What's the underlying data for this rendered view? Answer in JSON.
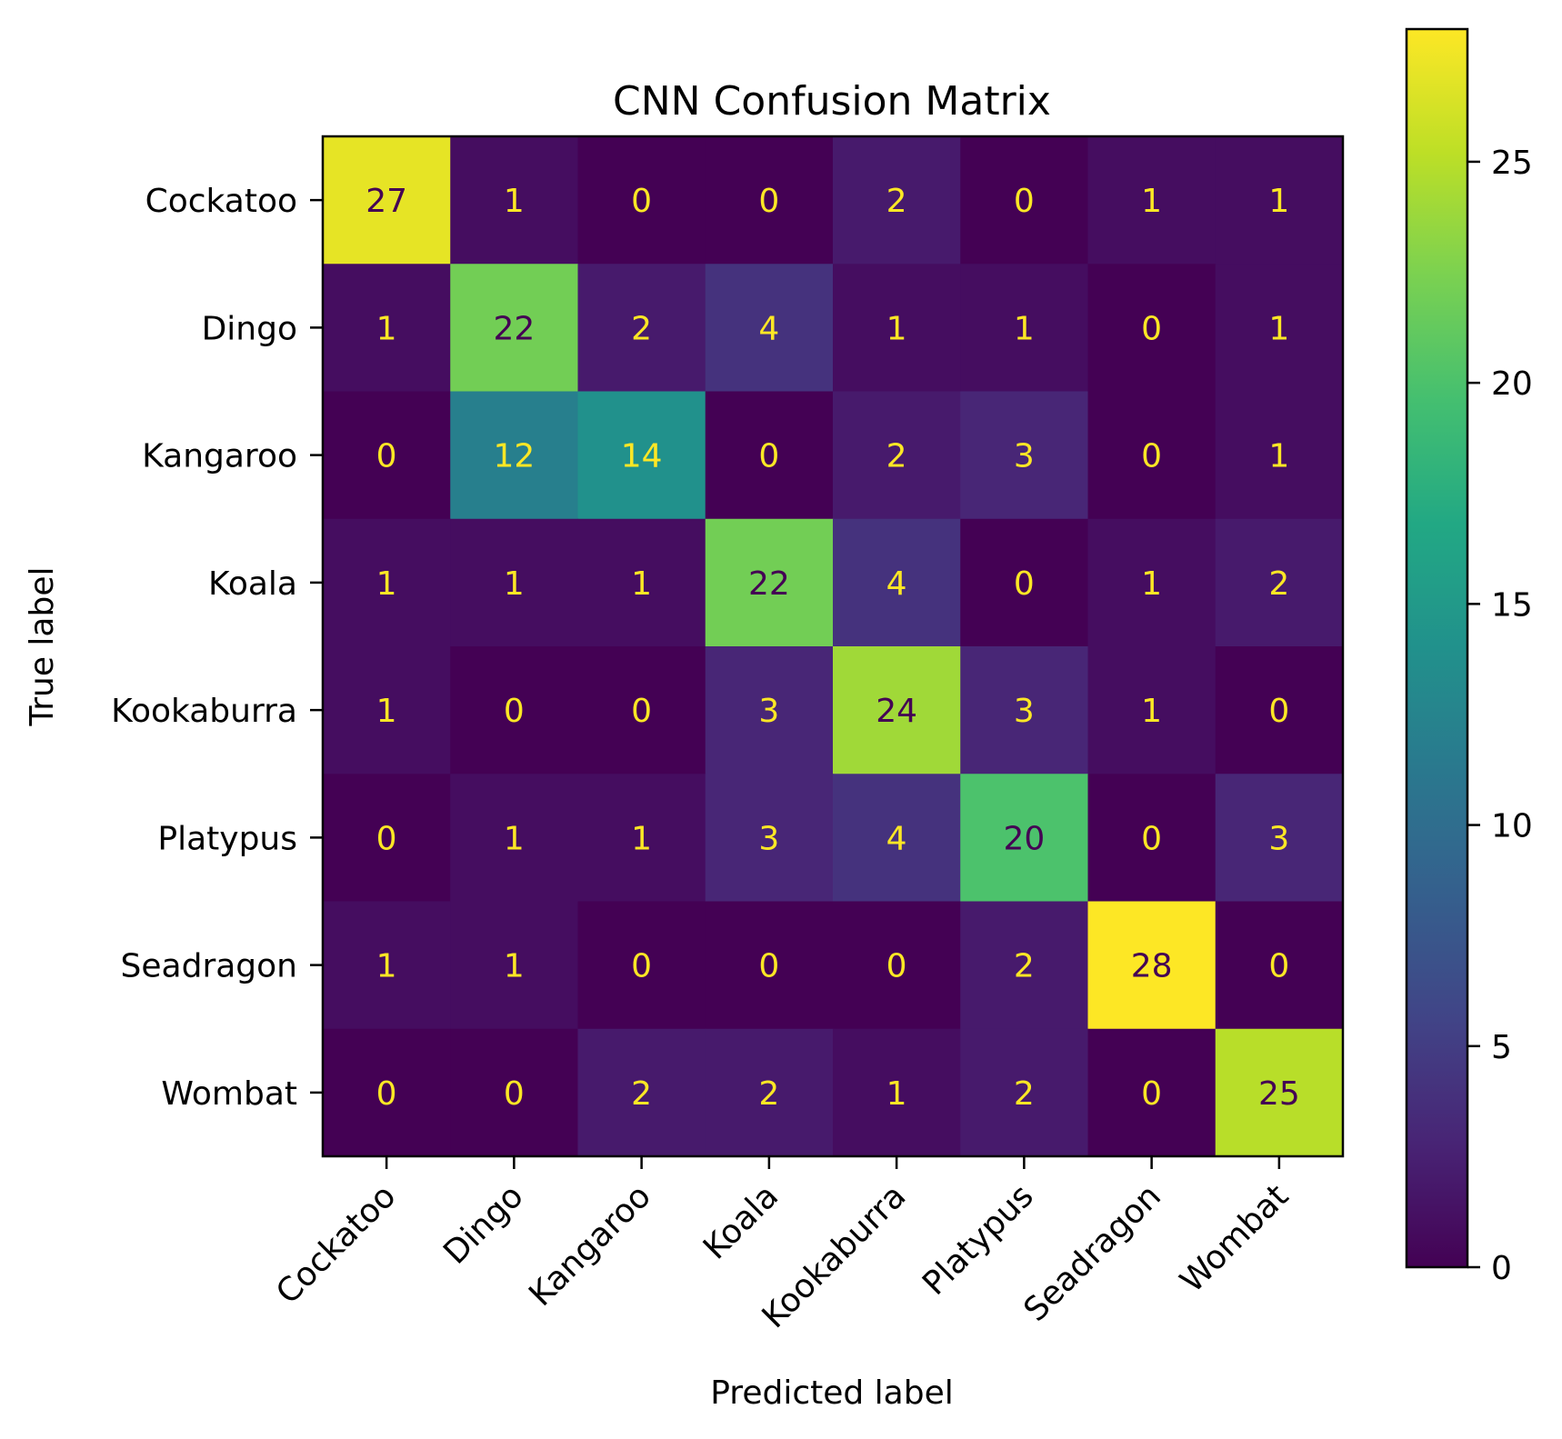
{
  "chart_data": {
    "type": "heatmap",
    "title": "CNN Confusion Matrix",
    "xlabel": "Predicted label",
    "ylabel": "True label",
    "x_categories": [
      "Cockatoo",
      "Dingo",
      "Kangaroo",
      "Koala",
      "Kookaburra",
      "Platypus",
      "Seadragon",
      "Wombat"
    ],
    "y_categories": [
      "Cockatoo",
      "Dingo",
      "Kangaroo",
      "Koala",
      "Kookaburra",
      "Platypus",
      "Seadragon",
      "Wombat"
    ],
    "values": [
      [
        27,
        1,
        0,
        0,
        2,
        0,
        1,
        1
      ],
      [
        1,
        22,
        2,
        4,
        1,
        1,
        0,
        1
      ],
      [
        0,
        12,
        14,
        0,
        2,
        3,
        0,
        1
      ],
      [
        1,
        1,
        1,
        22,
        4,
        0,
        1,
        2
      ],
      [
        1,
        0,
        0,
        3,
        24,
        3,
        1,
        0
      ],
      [
        0,
        1,
        1,
        3,
        4,
        20,
        0,
        3
      ],
      [
        1,
        1,
        0,
        0,
        0,
        2,
        28,
        0
      ],
      [
        0,
        0,
        2,
        2,
        1,
        2,
        0,
        25
      ]
    ],
    "colormap": "viridis",
    "colorbar": {
      "vmin": 0,
      "vmax": 28,
      "ticks": [
        0,
        5,
        10,
        15,
        20,
        25
      ]
    },
    "text_colors": {
      "on_dark": "#fde725",
      "on_light": "#440154"
    }
  }
}
